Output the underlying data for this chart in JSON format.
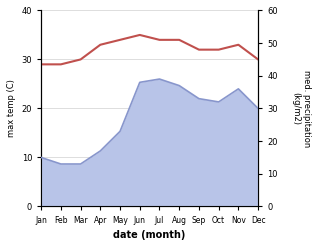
{
  "months": [
    "Jan",
    "Feb",
    "Mar",
    "Apr",
    "May",
    "Jun",
    "Jul",
    "Aug",
    "Sep",
    "Oct",
    "Nov",
    "Dec"
  ],
  "temp_max": [
    29,
    29,
    30,
    33,
    34,
    35,
    34,
    34,
    32,
    32,
    33,
    30
  ],
  "precip": [
    15,
    13,
    13,
    17,
    23,
    38,
    39,
    37,
    33,
    32,
    36,
    30
  ],
  "temp_ylim": [
    0,
    40
  ],
  "precip_ylim": [
    0,
    60
  ],
  "temp_color": "#c0504d",
  "precip_color": "#8896cc",
  "precip_fill_color": "#b8c4e8",
  "xlabel": "date (month)",
  "ylabel_left": "max temp (C)",
  "ylabel_right": "med. precipitation\n(kg/m2)",
  "bg_color": "#ffffff",
  "grid_color": "#d0d0d0",
  "temp_linewidth": 1.5,
  "precip_linewidth": 1.2,
  "left_ticks": [
    0,
    10,
    20,
    30,
    40
  ],
  "right_ticks": [
    0,
    10,
    20,
    30,
    40,
    50,
    60
  ]
}
